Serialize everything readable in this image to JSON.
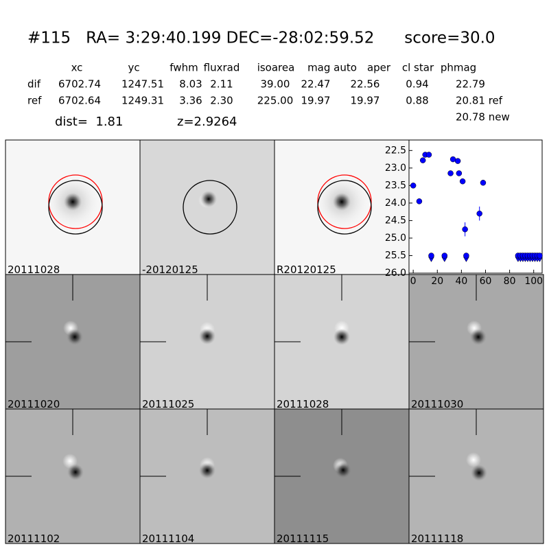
{
  "header": {
    "title": "#115   RA= 3:29:40.199 DEC=-28:02:59.52      score=30.0"
  },
  "table": {
    "columns": [
      "xc",
      "yc",
      "fwhm",
      "fluxrad",
      "isoarea",
      "mag auto",
      "aper",
      "cl star",
      "phmag"
    ],
    "rows": [
      [
        "dif",
        "6702.74",
        "1247.51",
        "8.03",
        "2.11",
        "39.00",
        "22.47",
        "22.56",
        "0.94",
        "22.79"
      ],
      [
        "ref",
        "6702.64",
        "1249.31",
        "3.36",
        "2.30",
        "225.00",
        "19.97",
        "19.97",
        "0.88",
        "20.81 ref"
      ]
    ],
    "extra": "20.78 new"
  },
  "dist": "dist=  1.81",
  "z": "z=2.9264",
  "panels": [
    "20111028",
    "-20120125",
    "R20120125",
    "20111020",
    "20111025",
    "20111028",
    "20111030",
    "20111102",
    "20111104",
    "20111115",
    "20111118"
  ],
  "chart_data": {
    "type": "scatter",
    "xlim": [
      -3.5,
      107
    ],
    "ylim": [
      26.0,
      22.2
    ],
    "xticks": [
      0,
      20,
      40,
      60,
      80,
      100
    ],
    "yticks": [
      22.5,
      {
        "value": 23,
        "label": "23.0"
      },
      23.5,
      {
        "value": 24,
        "label": "24.0"
      },
      24.5,
      {
        "value": 25,
        "label": "25.0"
      },
      25.5,
      {
        "value": 26,
        "label": "26.0"
      }
    ],
    "series": [
      {
        "color": "#0000ff",
        "marker": "circle",
        "x": [
          0,
          5,
          8,
          10,
          13,
          31,
          33,
          37,
          38,
          41,
          43,
          55,
          58
        ],
        "values": [
          23.5,
          23.95,
          22.78,
          22.62,
          22.62,
          23.15,
          22.75,
          22.8,
          23.15,
          23.38,
          24.75,
          24.3,
          23.42
        ],
        "errors": [
          0.03,
          0.03,
          0.03,
          0.03,
          0.03,
          0.03,
          0.03,
          0.03,
          0.03,
          0.03,
          0.2,
          0.2,
          0.05
        ]
      },
      {
        "color": "#0000ff",
        "marker": "triangle",
        "x": [
          15,
          26,
          44,
          87,
          89,
          91,
          93,
          95,
          97,
          99,
          101,
          103,
          105
        ],
        "values": [
          25.5,
          25.5,
          25.5,
          25.5,
          25.5,
          25.5,
          25.5,
          25.5,
          25.5,
          25.5,
          25.5,
          25.5,
          25.5
        ]
      }
    ]
  }
}
